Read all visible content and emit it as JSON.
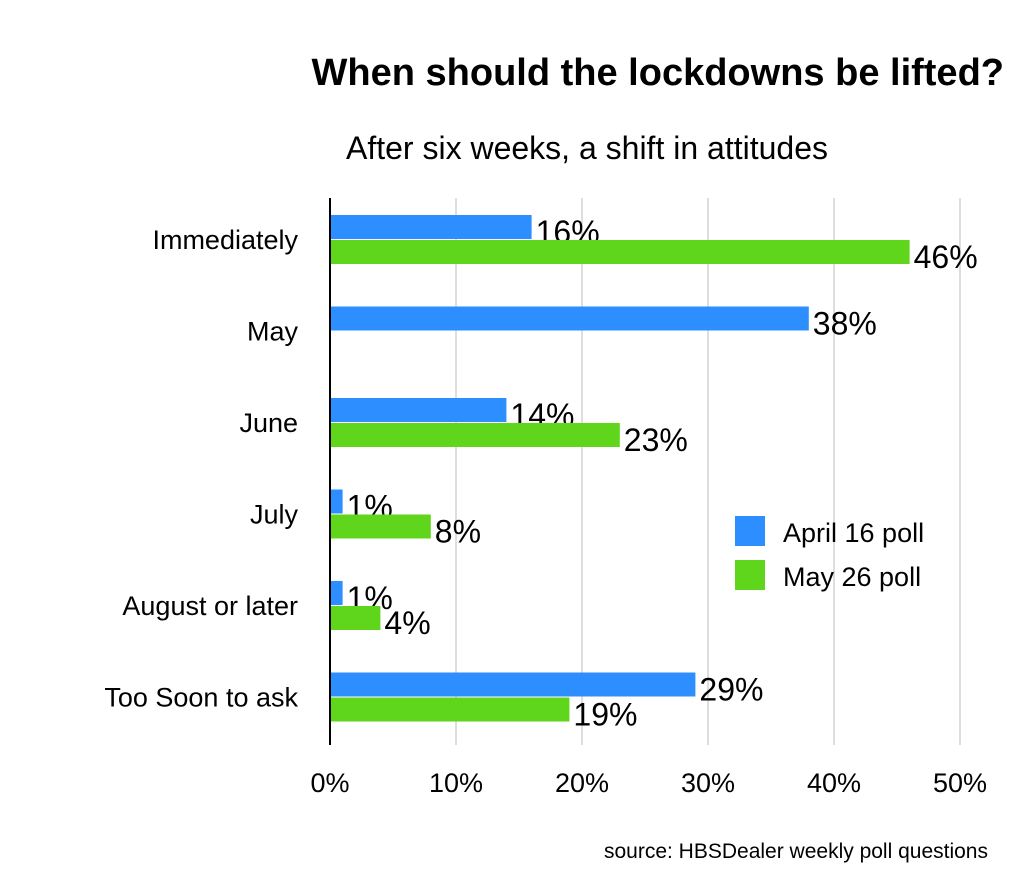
{
  "title": "When should the lockdowns be lifted?",
  "subtitle": "After six weeks, a shift in attitudes",
  "source": "source: HBSDealer weekly poll questions",
  "chart_data": {
    "type": "bar",
    "orientation": "horizontal",
    "categories": [
      "Immediately",
      "May",
      "June",
      "July",
      "August or later",
      "Too Soon to ask"
    ],
    "series": [
      {
        "name": "April 16 poll",
        "color": "#2d8fff",
        "values": [
          16,
          38,
          14,
          1,
          1,
          29
        ],
        "labels": [
          "16%",
          "38%",
          "14%",
          "1%",
          "1%",
          "29%"
        ]
      },
      {
        "name": "May 26 poll",
        "color": "#5fd61c",
        "values": [
          46,
          null,
          23,
          8,
          4,
          19
        ],
        "labels": [
          "46%",
          "",
          "23%",
          "8%",
          "4%",
          "19%"
        ]
      }
    ],
    "xlim": [
      0,
      50
    ],
    "xticks": [
      0,
      10,
      20,
      30,
      40,
      50
    ],
    "xtick_labels": [
      "0%",
      "10%",
      "20%",
      "30%",
      "40%",
      "50%"
    ],
    "grid": "vertical",
    "legend": "right"
  }
}
